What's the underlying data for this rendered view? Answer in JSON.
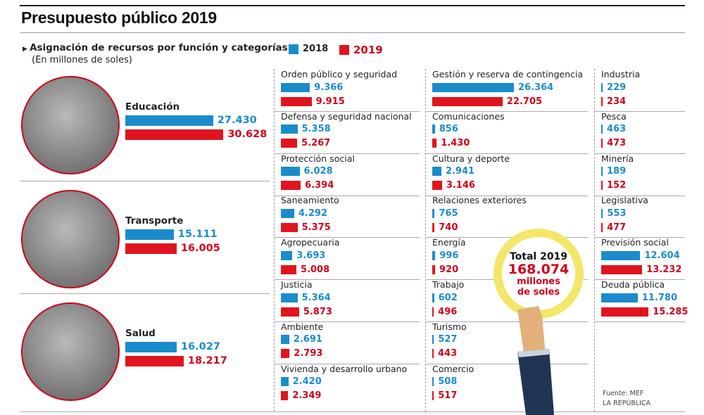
{
  "header": {
    "title": "Presupuesto público 2019",
    "subtitle": "Asignación de recursos por función y categorías",
    "units": "(En millones de soles)"
  },
  "colors": {
    "2018": "#1a8ccc",
    "2019": "#e0141e"
  },
  "chart_data": {
    "type": "bar",
    "orientation": "horizontal",
    "legend": [
      {
        "name": "2018",
        "color": "#1a8ccc"
      },
      {
        "name": "2019",
        "color": "#e0141e"
      }
    ],
    "legend_placement": "top",
    "series_names": [
      "2018",
      "2019"
    ],
    "categories_featured": [
      {
        "label": "Educación",
        "v2018": 27.43,
        "v2019": 30.628,
        "t2018": "27.430",
        "t2019": "30.628"
      },
      {
        "label": "Transporte",
        "v2018": 15.111,
        "v2019": 16.005,
        "t2018": "15.111",
        "t2019": "16.005"
      },
      {
        "label": "Salud",
        "v2018": 16.027,
        "v2019": 18.217,
        "t2018": "16.027",
        "t2019": "18.217"
      }
    ],
    "columns": [
      [
        {
          "label": "Orden público y seguridad",
          "t2018": "9.366",
          "t2019": "9.915"
        },
        {
          "label": "Defensa y seguridad nacional",
          "t2018": "5.358",
          "t2019": "5.267"
        },
        {
          "label": "Protección social",
          "t2018": "6.028",
          "t2019": "6.394"
        },
        {
          "label": "Saneamiento",
          "t2018": "4.292",
          "t2019": "5.375"
        },
        {
          "label": "Agropecuaria",
          "t2018": "3.693",
          "t2019": "5.008"
        },
        {
          "label": "Justicia",
          "t2018": "5.364",
          "t2019": "5.873"
        },
        {
          "label": "Ambiente",
          "t2018": "2.691",
          "t2019": "2.793"
        },
        {
          "label": "Vivienda y desarrollo urbano",
          "t2018": "2.420",
          "t2019": "2.349"
        }
      ],
      [
        {
          "label": "Gestión y reserva de contingencia",
          "t2018": "26.364",
          "t2019": "22.705"
        },
        {
          "label": "Comunicaciones",
          "t2018": "856",
          "t2019": "1.430"
        },
        {
          "label": "Cultura y deporte",
          "t2018": "2.941",
          "t2019": "3.146"
        },
        {
          "label": "Relaciones exteriores",
          "t2018": "765",
          "t2019": "740"
        },
        {
          "label": "Energía",
          "t2018": "996",
          "t2019": "920"
        },
        {
          "label": "Trabajo",
          "t2018": "602",
          "t2019": "496"
        },
        {
          "label": "Turismo",
          "t2018": "527",
          "t2019": "443"
        },
        {
          "label": "Comercio",
          "t2018": "508",
          "t2019": "517"
        }
      ],
      [
        {
          "label": "Industria",
          "t2018": "229",
          "t2019": "234"
        },
        {
          "label": "Pesca",
          "t2018": "463",
          "t2019": "473"
        },
        {
          "label": "Minería",
          "t2018": "189",
          "t2019": "152"
        },
        {
          "label": "Legislativa",
          "t2018": "553",
          "t2019": "477"
        },
        {
          "label": "Previsión social",
          "t2018": "12.604",
          "t2019": "13.232"
        },
        {
          "label": "Deuda pública",
          "t2018": "11.780",
          "t2019": "15.285"
        }
      ]
    ]
  },
  "total": {
    "label": "Total 2019",
    "value": "168.074",
    "unit1": "millones",
    "unit2": "de soles"
  },
  "source": {
    "line1": "Fuente: MEF",
    "line2": "LA REPÚBLICA"
  }
}
